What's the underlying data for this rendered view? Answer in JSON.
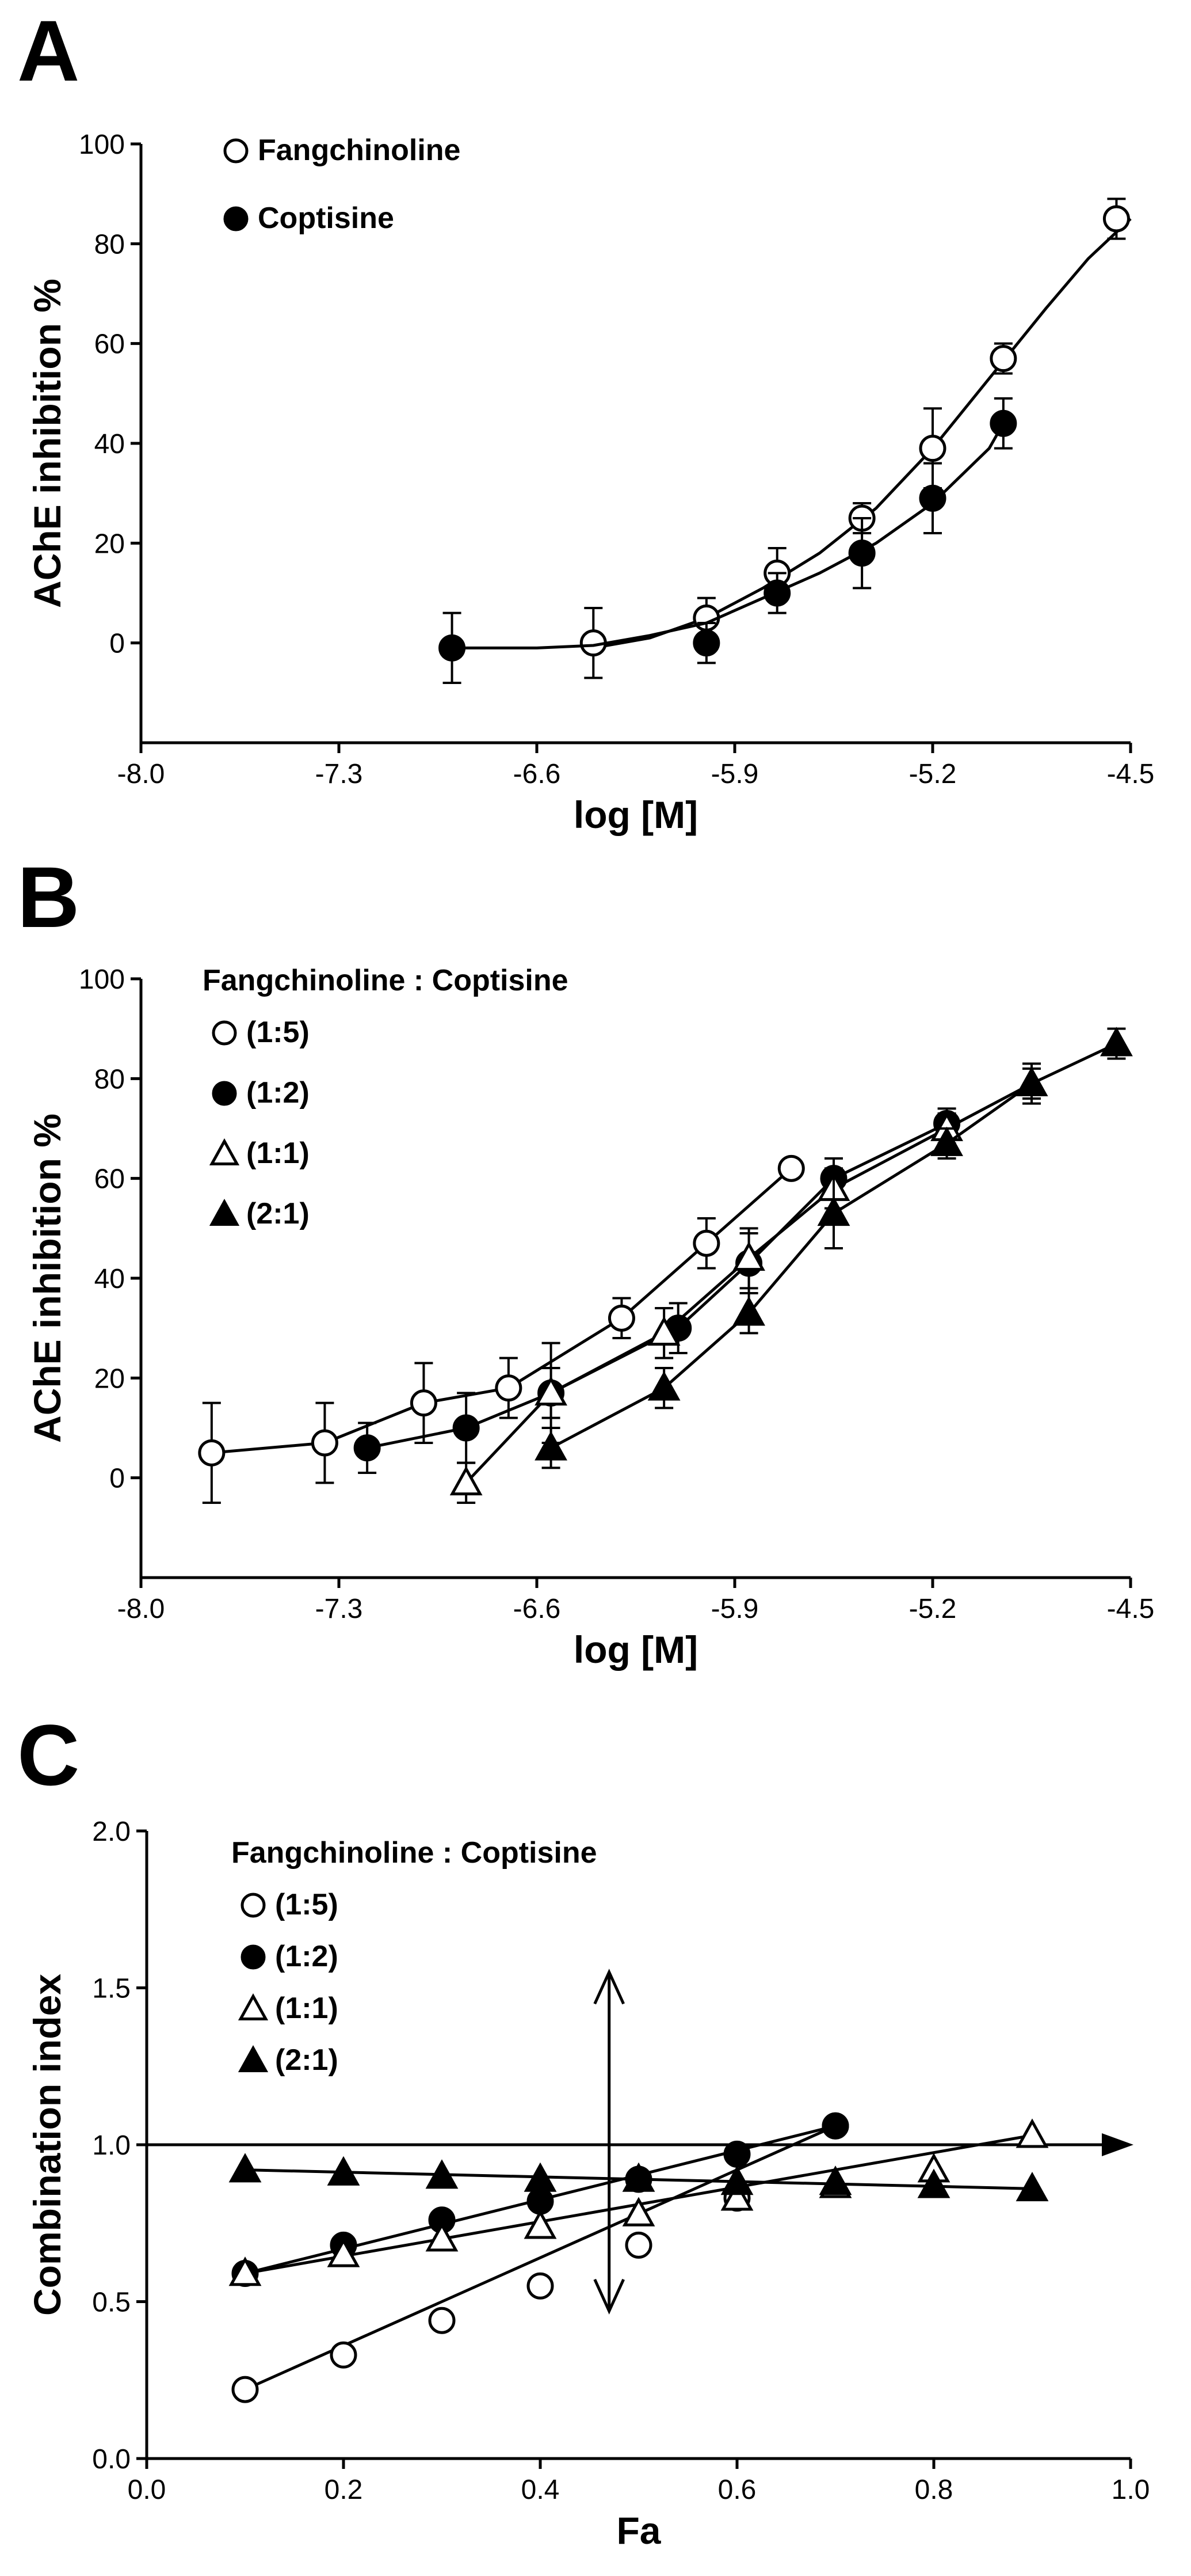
{
  "colors": {
    "ink": "#000000",
    "background": "#ffffff",
    "hollow_fill": "#ffffff"
  },
  "chart_data": [
    {
      "panel": "A",
      "type": "line",
      "xlabel": "log [M]",
      "ylabel": "AChE inhibition %",
      "xlim": [
        -8.0,
        -4.5
      ],
      "ylim": [
        -20,
        100
      ],
      "xticks": [
        "-8.0",
        "-7.3",
        "-6.6",
        "-5.9",
        "-5.2",
        "-4.5"
      ],
      "yticks": [
        "0",
        "20",
        "40",
        "60",
        "80",
        "100"
      ],
      "legend_title": "",
      "legend_position": "top-left",
      "series": [
        {
          "name": "Fangchinoline",
          "marker": "circle-open",
          "x": [
            -6.4,
            -6.0,
            -5.75,
            -5.45,
            -5.2,
            -4.95,
            -4.55
          ],
          "y": [
            0,
            5,
            14,
            25,
            39,
            57,
            85
          ],
          "err": [
            7,
            4,
            5,
            3,
            8,
            3,
            4
          ],
          "fit_x": [
            -6.4,
            -6.2,
            -6.0,
            -5.8,
            -5.6,
            -5.4,
            -5.2,
            -5.0,
            -4.8,
            -4.65,
            -4.5
          ],
          "fit_y": [
            -1,
            1,
            5,
            11,
            18,
            27,
            39,
            53,
            67,
            77,
            85
          ]
        },
        {
          "name": "Coptisine",
          "marker": "circle-filled",
          "x": [
            -6.9,
            -6.0,
            -5.75,
            -5.45,
            -5.2,
            -4.95
          ],
          "y": [
            -1,
            0,
            10,
            18,
            29,
            44
          ],
          "err": [
            7,
            4,
            4,
            7,
            7,
            5
          ],
          "fit_x": [
            -6.9,
            -6.6,
            -6.4,
            -6.2,
            -6.0,
            -5.8,
            -5.6,
            -5.4,
            -5.2,
            -5.0,
            -4.95
          ],
          "fit_y": [
            -1,
            -1,
            -0.5,
            1.5,
            4,
            9,
            14,
            20,
            28,
            39,
            44
          ]
        }
      ]
    },
    {
      "panel": "B",
      "type": "line",
      "xlabel": "log [M]",
      "ylabel": "AChE inhibition %",
      "xlim": [
        -8.0,
        -4.5
      ],
      "ylim": [
        -20,
        100
      ],
      "xticks": [
        "-8.0",
        "-7.3",
        "-6.6",
        "-5.9",
        "-5.2",
        "-4.5"
      ],
      "yticks": [
        "0",
        "20",
        "40",
        "60",
        "80",
        "100"
      ],
      "legend_title": "Fangchinoline : Coptisine",
      "legend_position": "top-left",
      "series": [
        {
          "name": "(1:5)",
          "marker": "circle-open",
          "x": [
            -7.75,
            -7.35,
            -7.0,
            -6.7,
            -6.3,
            -6.0,
            -5.7
          ],
          "y": [
            5,
            7,
            15,
            18,
            32,
            47,
            62
          ],
          "err": [
            10,
            8,
            8,
            6,
            4,
            5,
            1
          ],
          "fit_x": [
            -7.75,
            -7.35,
            -7.0,
            -6.7,
            -6.3,
            -6.0,
            -5.7
          ],
          "fit_y": [
            5,
            7,
            15,
            18,
            32,
            47,
            62
          ]
        },
        {
          "name": "(1:2)",
          "marker": "circle-filled",
          "x": [
            -7.2,
            -6.85,
            -6.55,
            -6.1,
            -5.85,
            -5.55,
            -5.15
          ],
          "y": [
            6,
            10,
            17,
            30,
            43,
            60,
            71
          ],
          "err": [
            5,
            7,
            10,
            5,
            6,
            4,
            3
          ],
          "fit_x": [
            -7.2,
            -6.85,
            -6.55,
            -6.1,
            -5.85,
            -5.55,
            -5.15
          ],
          "fit_y": [
            6,
            10,
            17,
            30,
            43,
            60,
            71
          ]
        },
        {
          "name": "(1:1)",
          "marker": "triangle-open",
          "x": [
            -6.85,
            -6.55,
            -6.15,
            -5.85,
            -5.55,
            -5.15,
            -4.85
          ],
          "y": [
            -1,
            17,
            29,
            44,
            58,
            70,
            79
          ],
          "err": [
            4,
            5,
            5,
            6,
            4,
            3,
            3
          ],
          "fit_x": [
            -6.85,
            -6.55,
            -6.15,
            -5.85,
            -5.55,
            -5.15,
            -4.85
          ],
          "fit_y": [
            -1,
            17,
            29,
            44,
            58,
            70,
            79
          ]
        },
        {
          "name": "(2:1)",
          "marker": "triangle-filled",
          "x": [
            -6.55,
            -6.15,
            -5.85,
            -5.55,
            -5.15,
            -4.85,
            -4.55
          ],
          "y": [
            6,
            18,
            33,
            53,
            67,
            79,
            87
          ],
          "err": [
            4,
            4,
            4,
            7,
            3,
            4,
            3
          ],
          "fit_x": [
            -6.55,
            -6.15,
            -5.85,
            -5.55,
            -5.15,
            -4.85,
            -4.55
          ],
          "fit_y": [
            6,
            18,
            33,
            53,
            67,
            79,
            87
          ]
        }
      ]
    },
    {
      "panel": "C",
      "type": "line",
      "xlabel": "Fa",
      "ylabel": "Combination index",
      "xlim": [
        0.0,
        1.0
      ],
      "ylim": [
        0.0,
        2.0
      ],
      "xticks": [
        "0.0",
        "0.2",
        "0.4",
        "0.6",
        "0.8",
        "1.0"
      ],
      "yticks": [
        "0.0",
        "0.5",
        "1.0",
        "1.5",
        "2.0"
      ],
      "legend_title": "Fangchinoline : Coptisine",
      "legend_position": "top-left",
      "reference": {
        "y": 1.0,
        "vertical_x": 0.47,
        "vertical_range": [
          0.47,
          1.55
        ]
      },
      "series": [
        {
          "name": "(1:5)",
          "marker": "circle-open",
          "x": [
            0.1,
            0.2,
            0.3,
            0.4,
            0.5,
            0.6,
            0.7
          ],
          "y": [
            0.22,
            0.33,
            0.44,
            0.55,
            0.68,
            0.83,
            1.06
          ],
          "err": [],
          "fit_x": [
            0.1,
            0.7
          ],
          "fit_y": [
            0.22,
            1.06
          ]
        },
        {
          "name": "(1:2)",
          "marker": "circle-filled",
          "x": [
            0.1,
            0.2,
            0.3,
            0.4,
            0.5,
            0.6,
            0.7
          ],
          "y": [
            0.59,
            0.68,
            0.76,
            0.82,
            0.89,
            0.97,
            1.06
          ],
          "err": [],
          "fit_x": [
            0.1,
            0.7
          ],
          "fit_y": [
            0.59,
            1.06
          ]
        },
        {
          "name": "(1:1)",
          "marker": "triangle-open",
          "x": [
            0.1,
            0.2,
            0.3,
            0.4,
            0.5,
            0.6,
            0.7,
            0.8,
            0.9
          ],
          "y": [
            0.59,
            0.65,
            0.7,
            0.74,
            0.78,
            0.83,
            0.87,
            0.92,
            1.03
          ],
          "err": [],
          "fit_x": [
            0.1,
            0.9
          ],
          "fit_y": [
            0.59,
            1.03
          ]
        },
        {
          "name": "(2:1)",
          "marker": "triangle-filled",
          "x": [
            0.1,
            0.2,
            0.3,
            0.4,
            0.5,
            0.6,
            0.7,
            0.8,
            0.9
          ],
          "y": [
            0.92,
            0.91,
            0.9,
            0.89,
            0.89,
            0.88,
            0.88,
            0.87,
            0.86
          ],
          "err": [],
          "fit_x": [
            0.1,
            0.9
          ],
          "fit_y": [
            0.92,
            0.86
          ]
        }
      ]
    }
  ]
}
